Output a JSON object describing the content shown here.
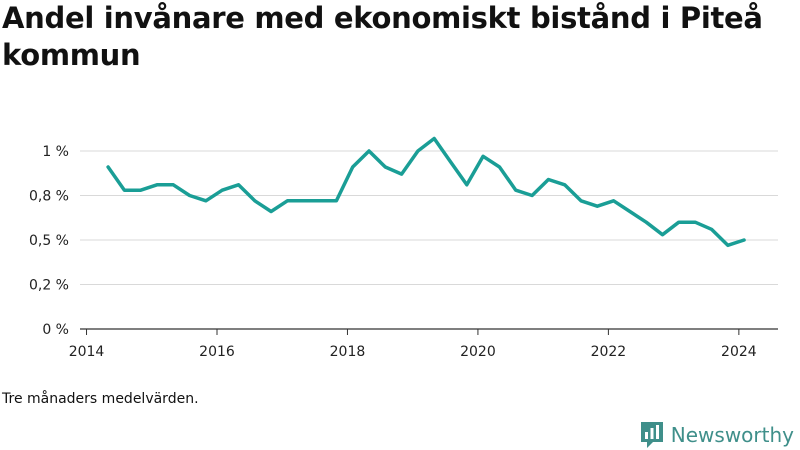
{
  "title": "Andel invånare med ekonomiskt bistånd i Piteå kommun",
  "note": "Tre månaders medelvärden.",
  "brand": {
    "name": "Newsworthy",
    "icon": "newsworthy-logo-icon"
  },
  "colors": {
    "line": "#1a9e96",
    "grid": "#d9d9d9",
    "axis": "#333333",
    "brand": "#3f8f8a"
  },
  "chart_data": {
    "type": "line",
    "title": "Andel invånare med ekonomiskt bistånd i Piteå kommun",
    "xlabel": "",
    "ylabel": "",
    "xlim": [
      2013.9,
      2024.6
    ],
    "ylim": [
      0,
      1.0
    ],
    "x_ticks": [
      2014,
      2016,
      2018,
      2020,
      2022,
      2024
    ],
    "x_tick_labels": [
      "2014",
      "2016",
      "2018",
      "2020",
      "2022",
      "2024"
    ],
    "y_ticks": [
      0,
      0.25,
      0.5,
      0.75,
      1.0
    ],
    "y_tick_labels": [
      "0 %",
      "0,2 %",
      "0,5 %",
      "0,8 %",
      "1 %"
    ],
    "grid": true,
    "legend": "none",
    "series": [
      {
        "x": [
          2014.33,
          2014.58,
          2014.83,
          2015.08,
          2015.33,
          2015.58,
          2015.83,
          2016.08,
          2016.33,
          2016.58,
          2016.83,
          2017.08,
          2017.33,
          2017.58,
          2017.83,
          2018.08,
          2018.33,
          2018.58,
          2018.83,
          2019.08,
          2019.33,
          2019.58,
          2019.83,
          2020.08,
          2020.33,
          2020.58,
          2020.83,
          2021.08,
          2021.33,
          2021.58,
          2021.83,
          2022.08,
          2022.33,
          2022.58,
          2022.83,
          2023.08,
          2023.33,
          2023.58,
          2023.83,
          2024.08
        ],
        "values": [
          0.91,
          0.78,
          0.78,
          0.81,
          0.81,
          0.75,
          0.72,
          0.78,
          0.81,
          0.72,
          0.66,
          0.72,
          0.72,
          0.72,
          0.72,
          0.91,
          1.0,
          0.91,
          0.87,
          1.0,
          1.07,
          0.94,
          0.81,
          0.97,
          0.91,
          0.78,
          0.75,
          0.84,
          0.81,
          0.72,
          0.69,
          0.72,
          0.66,
          0.6,
          0.53,
          0.6,
          0.6,
          0.56,
          0.47,
          0.5
        ]
      }
    ]
  }
}
